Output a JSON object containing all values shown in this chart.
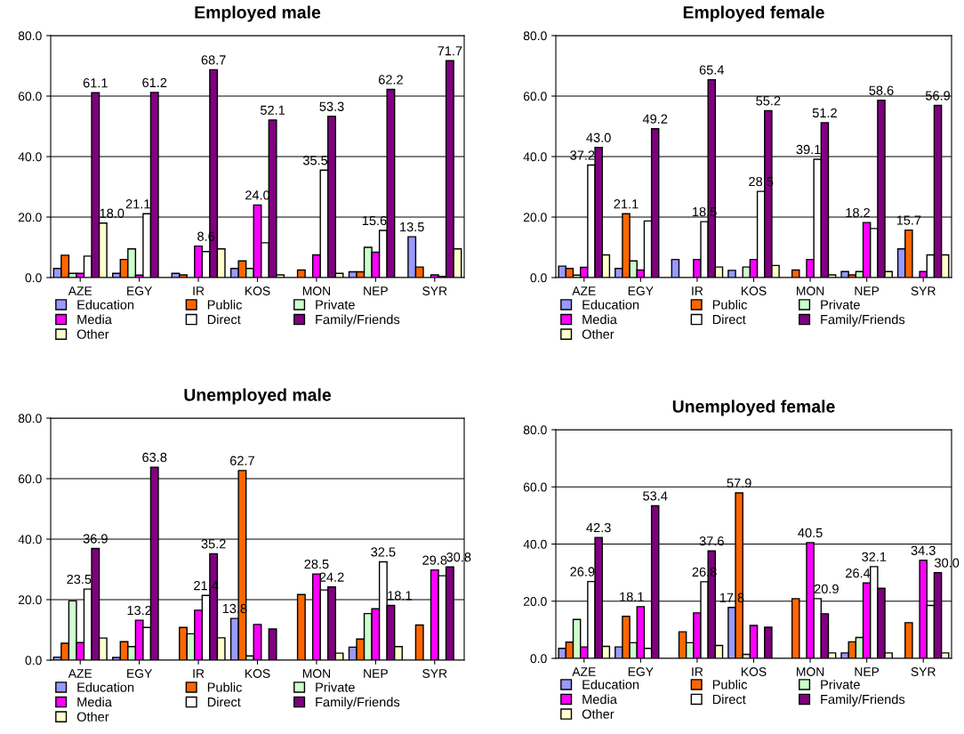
{
  "chart_data": [
    {
      "type": "bar",
      "title": "Employed male",
      "categories": [
        "AZE",
        "EGY",
        "IR",
        "KOS",
        "MON",
        "NEP",
        "SYR"
      ],
      "ylim": [
        0,
        80
      ],
      "yticks": [
        {
          "value": 0,
          "label": "0.0"
        },
        {
          "value": 20,
          "label": "20.0"
        },
        {
          "value": 40,
          "label": "40.0"
        },
        {
          "value": 60,
          "label": "60.0"
        },
        {
          "value": 80,
          "label": "80.0"
        }
      ],
      "grid": "y",
      "legend": "bottom",
      "series": [
        {
          "name": "Education",
          "color": "#9999ff",
          "values": [
            3.0,
            1.4,
            1.4,
            3.0,
            null,
            1.9,
            13.5
          ],
          "value_labels": [
            null,
            null,
            null,
            null,
            null,
            null,
            "13.5"
          ]
        },
        {
          "name": "Public",
          "color": "#ff6600",
          "values": [
            7.4,
            6.0,
            0.9,
            5.5,
            2.5,
            1.9,
            3.5
          ],
          "value_labels": [
            null,
            null,
            null,
            null,
            null,
            null,
            null
          ]
        },
        {
          "name": "Private",
          "color": "#ccffcc",
          "values": [
            1.4,
            9.5,
            null,
            3.0,
            null,
            10.0,
            null
          ],
          "value_labels": [
            null,
            null,
            null,
            null,
            null,
            null,
            null
          ]
        },
        {
          "name": "Media",
          "color": "#ff00ff",
          "values": [
            1.4,
            0.8,
            10.4,
            24.0,
            7.5,
            8.4,
            0.9
          ],
          "value_labels": [
            null,
            null,
            null,
            "24.0",
            null,
            null,
            null
          ]
        },
        {
          "name": "Direct",
          "color": "#ffffff",
          "values": [
            7.1,
            21.1,
            8.6,
            11.5,
            35.5,
            15.6,
            0.4
          ],
          "value_labels": [
            null,
            "21.1",
            "8.6",
            null,
            "35.5",
            "15.6",
            null
          ]
        },
        {
          "name": "Family/Friends",
          "color": "#800080",
          "values": [
            61.1,
            61.2,
            68.7,
            52.1,
            53.3,
            62.2,
            71.7
          ],
          "value_labels": [
            "61.1",
            "61.2",
            "68.7",
            "52.1",
            "53.3",
            "62.2",
            "71.7"
          ]
        },
        {
          "name": "Other",
          "color": "#ffffcc",
          "values": [
            18.0,
            null,
            9.5,
            0.9,
            1.4,
            null,
            9.5
          ],
          "value_labels": [
            "18.0",
            null,
            null,
            null,
            null,
            null,
            null
          ]
        }
      ]
    },
    {
      "type": "bar",
      "title": "Employed female",
      "categories": [
        "AZE",
        "EGY",
        "IR",
        "KOS",
        "MON",
        "NEP",
        "SYR"
      ],
      "ylim": [
        0,
        80
      ],
      "yticks": [
        {
          "value": 0,
          "label": "0.0"
        },
        {
          "value": 20,
          "label": "20.0"
        },
        {
          "value": 40,
          "label": "40.0"
        },
        {
          "value": 60,
          "label": "60.0"
        },
        {
          "value": 80,
          "label": "80.0"
        }
      ],
      "grid": "y",
      "legend": "bottom",
      "series": [
        {
          "name": "Education",
          "color": "#9999ff",
          "values": [
            3.8,
            3.0,
            6.0,
            2.4,
            null,
            2.0,
            9.5
          ],
          "value_labels": [
            null,
            null,
            null,
            null,
            null,
            null,
            null
          ]
        },
        {
          "name": "Public",
          "color": "#ff6600",
          "values": [
            3.0,
            21.1,
            null,
            null,
            2.5,
            0.9,
            15.7
          ],
          "value_labels": [
            null,
            "21.1",
            null,
            null,
            null,
            null,
            "15.7"
          ]
        },
        {
          "name": "Private",
          "color": "#ccffcc",
          "values": [
            0.8,
            5.5,
            null,
            3.5,
            null,
            2.0,
            null
          ],
          "value_labels": [
            null,
            null,
            null,
            null,
            null,
            null,
            null
          ]
        },
        {
          "name": "Media",
          "color": "#ff00ff",
          "values": [
            3.4,
            2.5,
            6.0,
            6.0,
            6.0,
            18.2,
            2.0
          ],
          "value_labels": [
            null,
            null,
            null,
            null,
            null,
            "18.2",
            null
          ]
        },
        {
          "name": "Direct",
          "color": "#ffffff",
          "values": [
            37.2,
            18.7,
            18.5,
            28.5,
            39.1,
            16.2,
            7.5
          ],
          "value_labels": [
            "37.2",
            null,
            "18.5",
            "28.5",
            "39.1",
            null,
            null
          ]
        },
        {
          "name": "Family/Friends",
          "color": "#800080",
          "values": [
            43.0,
            49.2,
            65.4,
            55.2,
            51.2,
            58.6,
            56.9
          ],
          "value_labels": [
            "43.0",
            "49.2",
            "65.4",
            "55.2",
            "51.2",
            "58.6",
            "56.9"
          ]
        },
        {
          "name": "Other",
          "color": "#ffffcc",
          "values": [
            7.5,
            null,
            3.5,
            4.0,
            0.9,
            2.0,
            7.5
          ],
          "value_labels": [
            null,
            null,
            null,
            null,
            null,
            null,
            null
          ]
        }
      ]
    },
    {
      "type": "bar",
      "title": "Unemployed male",
      "categories": [
        "AZE",
        "EGY",
        "IR",
        "KOS",
        "MON",
        "NEP",
        "SYR"
      ],
      "ylim": [
        0,
        80
      ],
      "yticks": [
        {
          "value": 0,
          "label": "0.0"
        },
        {
          "value": 20,
          "label": "20.0"
        },
        {
          "value": 40,
          "label": "40.0"
        },
        {
          "value": 60,
          "label": "60.0"
        },
        {
          "value": 80,
          "label": "80.0"
        }
      ],
      "grid": "y",
      "legend": "bottom",
      "series": [
        {
          "name": "Education",
          "color": "#9999ff",
          "values": [
            1.0,
            0.9,
            null,
            13.8,
            null,
            4.3,
            null
          ],
          "value_labels": [
            null,
            null,
            null,
            "13.8",
            null,
            null,
            null
          ]
        },
        {
          "name": "Public",
          "color": "#ff6600",
          "values": [
            5.6,
            6.1,
            10.8,
            62.7,
            21.7,
            7.0,
            11.6
          ],
          "value_labels": [
            null,
            null,
            null,
            "62.7",
            null,
            null,
            null
          ]
        },
        {
          "name": "Private",
          "color": "#ccffcc",
          "values": [
            19.6,
            4.5,
            8.7,
            1.4,
            null,
            15.4,
            null
          ],
          "value_labels": [
            null,
            null,
            null,
            null,
            null,
            null,
            null
          ]
        },
        {
          "name": "Media",
          "color": "#ff00ff",
          "values": [
            5.8,
            13.2,
            16.5,
            11.8,
            28.5,
            17.0,
            29.8
          ],
          "value_labels": [
            null,
            "13.2",
            null,
            null,
            "28.5",
            null,
            "29.8"
          ]
        },
        {
          "name": "Direct",
          "color": "#ffffff",
          "values": [
            23.5,
            10.8,
            21.4,
            null,
            23.2,
            32.5,
            27.9
          ],
          "value_labels": [
            "23.5",
            null,
            "21.4",
            null,
            null,
            "32.5",
            null
          ]
        },
        {
          "name": "Family/Friends",
          "color": "#800080",
          "values": [
            36.9,
            63.8,
            35.2,
            10.3,
            24.2,
            18.1,
            30.8
          ],
          "value_labels": [
            "36.9",
            "63.8",
            "35.2",
            null,
            "24.2",
            "18.1",
            "30.8"
          ]
        },
        {
          "name": "Other",
          "color": "#ffffcc",
          "values": [
            7.3,
            null,
            7.4,
            null,
            2.3,
            4.5,
            null
          ],
          "value_labels": [
            null,
            null,
            null,
            null,
            null,
            null,
            null
          ]
        }
      ]
    },
    {
      "type": "bar",
      "title": "Unemployed female",
      "categories": [
        "AZE",
        "EGY",
        "IR",
        "KOS",
        "MON",
        "NEP",
        "SYR"
      ],
      "ylim": [
        0,
        80
      ],
      "yticks": [
        {
          "value": 0,
          "label": "0.0"
        },
        {
          "value": 20,
          "label": "20.0"
        },
        {
          "value": 40,
          "label": "40.0"
        },
        {
          "value": 60,
          "label": "60.0"
        },
        {
          "value": 80,
          "label": "80.0"
        }
      ],
      "grid": "y",
      "legend": "bottom",
      "series": [
        {
          "name": "Education",
          "color": "#9999ff",
          "values": [
            3.5,
            4.0,
            null,
            17.8,
            null,
            1.9,
            null
          ],
          "value_labels": [
            null,
            null,
            null,
            "17.8",
            null,
            null,
            null
          ]
        },
        {
          "name": "Public",
          "color": "#ff6600",
          "values": [
            5.7,
            14.7,
            9.3,
            57.9,
            20.9,
            5.8,
            12.5
          ],
          "value_labels": [
            null,
            null,
            null,
            "57.9",
            null,
            null,
            null
          ]
        },
        {
          "name": "Private",
          "color": "#ccffcc",
          "values": [
            13.6,
            5.5,
            5.5,
            1.4,
            null,
            7.3,
            null
          ],
          "value_labels": [
            null,
            null,
            null,
            null,
            null,
            null,
            null
          ]
        },
        {
          "name": "Media",
          "color": "#ff00ff",
          "values": [
            4.0,
            18.1,
            15.9,
            11.5,
            40.5,
            26.4,
            34.3
          ],
          "value_labels": [
            null,
            "18.1",
            null,
            null,
            "40.5",
            "26.4",
            "34.3"
          ]
        },
        {
          "name": "Direct",
          "color": "#ffffff",
          "values": [
            26.9,
            3.5,
            26.8,
            null,
            20.9,
            32.1,
            18.5
          ],
          "value_labels": [
            "26.9",
            null,
            "26.8",
            null,
            "20.9",
            "32.1",
            null
          ]
        },
        {
          "name": "Family/Friends",
          "color": "#800080",
          "values": [
            42.3,
            53.4,
            37.6,
            10.9,
            15.6,
            24.5,
            30.0
          ],
          "value_labels": [
            "42.3",
            "53.4",
            "37.6",
            null,
            null,
            null,
            "30.0"
          ]
        },
        {
          "name": "Other",
          "color": "#ffffcc",
          "values": [
            4.2,
            null,
            4.5,
            null,
            1.9,
            1.9,
            1.9
          ],
          "value_labels": [
            null,
            null,
            null,
            null,
            null,
            null,
            null
          ]
        }
      ]
    }
  ]
}
